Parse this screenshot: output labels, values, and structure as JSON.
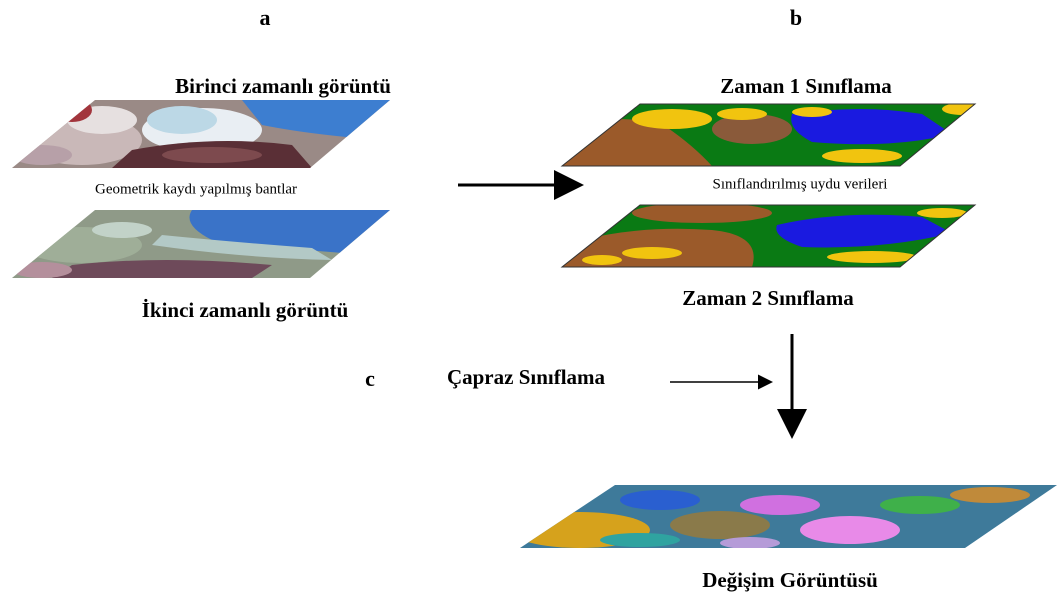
{
  "labels": {
    "a": "a",
    "b": "b",
    "c": "c"
  },
  "inputs": {
    "first": "Birinci zamanlı görüntü",
    "note": "Geometrik kaydı yapılmış bantlar",
    "second": "İkinci zamanlı görüntü"
  },
  "classified": {
    "first": "Zaman 1 Sınıflama",
    "note": "Sınıflandırılmış uydu verileri",
    "second": "Zaman 2 Sınıflama"
  },
  "cross": "Çapraz Sınıflama",
  "result": "Değişim Görüntüsü"
}
